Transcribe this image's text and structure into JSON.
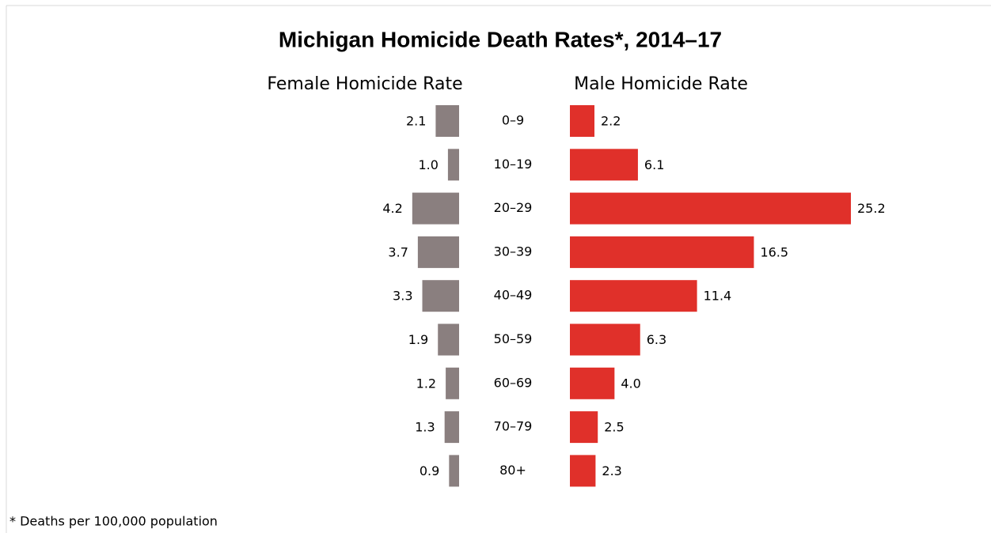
{
  "chart_data": {
    "type": "bar",
    "title": "Michigan Homicide Death Rates*, 2014–17",
    "footnote": "* Deaths per 100,000 population",
    "categories": [
      "0–9",
      "10–19",
      "20–29",
      "30–39",
      "40–49",
      "50–59",
      "60–69",
      "70–79",
      "80+"
    ],
    "series": [
      {
        "name": "Female Homicide Rate",
        "color": "#8a7f7f",
        "values": [
          2.1,
          1.0,
          4.2,
          3.7,
          3.3,
          1.9,
          1.2,
          1.3,
          0.9
        ],
        "value_labels": [
          "2.1",
          "1.0",
          "4.2",
          "3.7",
          "3.3",
          "1.9",
          "1.2",
          "1.3",
          "0.9"
        ]
      },
      {
        "name": "Male Homicide Rate",
        "color": "#e0302a",
        "values": [
          2.2,
          6.1,
          25.2,
          16.5,
          11.4,
          6.3,
          4.0,
          2.5,
          2.3
        ],
        "value_labels": [
          "2.2",
          "6.1",
          "25.2",
          "16.5",
          "11.4",
          "6.3",
          "4.0",
          "2.5",
          "2.3"
        ]
      }
    ]
  }
}
